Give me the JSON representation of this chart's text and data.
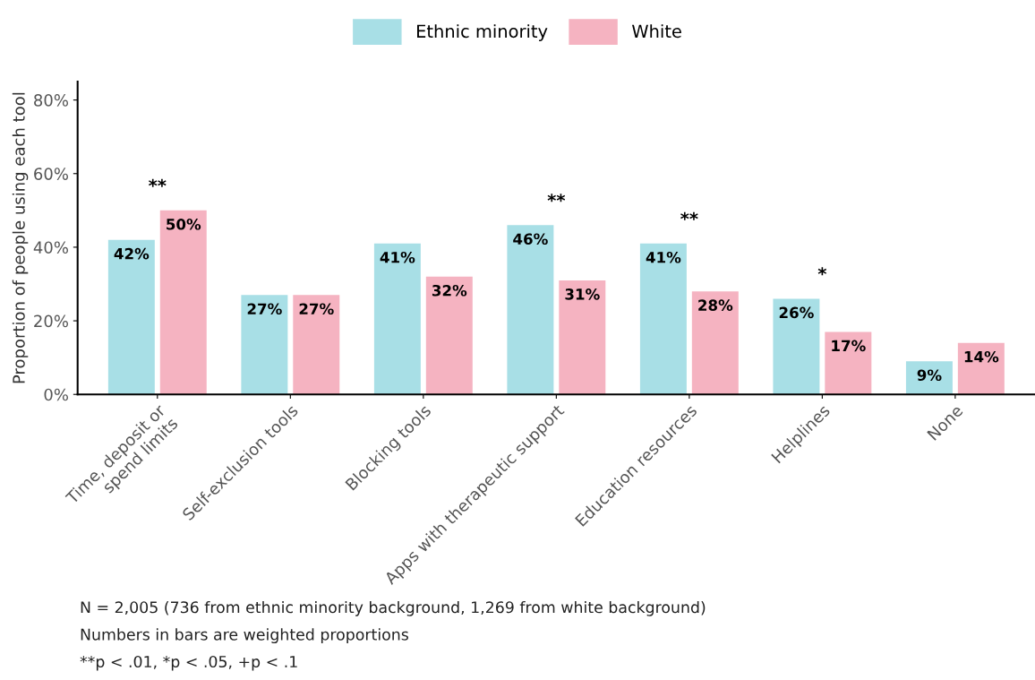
{
  "chart_data": {
    "type": "bar",
    "ylabel": "Proportion of people using each tool",
    "categories": [
      "Time, deposit or\nspend limits",
      "Self-exclusion tools",
      "Blocking tools",
      "Apps with therapeutic support",
      "Education resources",
      "Helplines",
      "None"
    ],
    "series": [
      {
        "name": "Ethnic minority",
        "color": "#a8dfe6",
        "values": [
          42,
          27,
          41,
          46,
          41,
          26,
          9
        ],
        "value_labels": [
          "42%",
          "27%",
          "41%",
          "46%",
          "41%",
          "26%",
          "9%"
        ]
      },
      {
        "name": "White",
        "color": "#f5b3c1",
        "values": [
          50,
          27,
          32,
          31,
          28,
          17,
          14
        ],
        "value_labels": [
          "50%",
          "27%",
          "32%",
          "31%",
          "28%",
          "17%",
          "14%"
        ]
      }
    ],
    "ylim": [
      0,
      85
    ],
    "yticks": [
      {
        "value": 0,
        "label": "0%"
      },
      {
        "value": 20,
        "label": "20%"
      },
      {
        "value": 40,
        "label": "40%"
      },
      {
        "value": 60,
        "label": "60%"
      },
      {
        "value": 80,
        "label": "80%"
      }
    ],
    "grid": false,
    "legend": "top",
    "annotations": [
      {
        "text": "**",
        "x": "Time, deposit or\nspend limits",
        "y": 50
      },
      {
        "text": "**",
        "x": "Apps with therapeutic support",
        "y": 46
      },
      {
        "text": "**",
        "x": "Education resources",
        "y": 41
      },
      {
        "text": "*",
        "x": "Helplines",
        "y": 26
      },
      "N = 2,005 (736 from ethnic minority background, 1,269 from white background)",
      "Numbers in bars are weighted proportions",
      "**p < .01, *p < .05, +p < .1"
    ]
  }
}
